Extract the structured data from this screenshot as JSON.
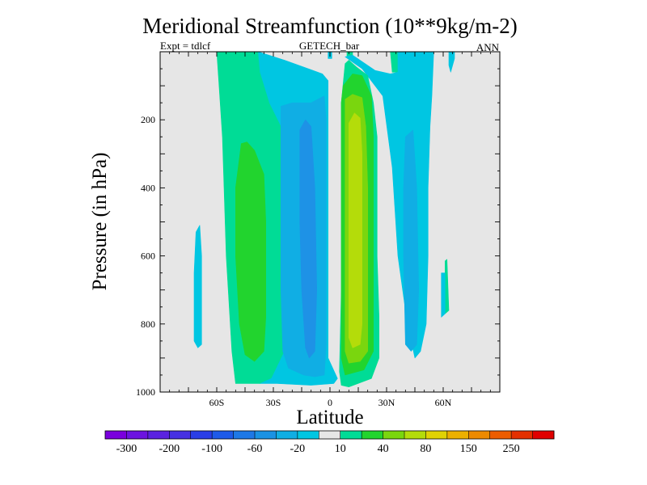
{
  "chart_data": {
    "type": "contour",
    "title": "Meridional Streamfunction (10**9kg/m-2)",
    "subtitle_left": "Expt = tdlcf",
    "subtitle_center": "GETECH_bar",
    "subtitle_right": "ANN",
    "xlabel": "Latitude",
    "ylabel": "Pressure (in hPa)",
    "xlim": [
      -90,
      90
    ],
    "ylim": [
      1000,
      0
    ],
    "x_ticks": [
      {
        "value": -60,
        "label": "60S"
      },
      {
        "value": -30,
        "label": "30S"
      },
      {
        "value": 0,
        "label": "0"
      },
      {
        "value": 30,
        "label": "30N"
      },
      {
        "value": 60,
        "label": "60N"
      }
    ],
    "y_ticks": [
      {
        "value": 200,
        "label": "200"
      },
      {
        "value": 400,
        "label": "400"
      },
      {
        "value": 600,
        "label": "600"
      },
      {
        "value": 800,
        "label": "800"
      },
      {
        "value": 1000,
        "label": "1000"
      }
    ],
    "background_color": "#e6e6e6",
    "colorbar": {
      "colors": [
        "#7a00dd",
        "#6c14e0",
        "#5a22e0",
        "#4630e2",
        "#2a3ee6",
        "#1e5ae8",
        "#1e78e6",
        "#1a92e4",
        "#10aee4",
        "#00c6e2",
        "#e6e6e6",
        "#00dc96",
        "#22d42e",
        "#7ad60e",
        "#b4dc0a",
        "#e0d204",
        "#ecb000",
        "#ec8a00",
        "#ec5c00",
        "#e43000",
        "#e00000"
      ],
      "labels": [
        {
          "text": "-300",
          "boundary": 1
        },
        {
          "text": "-200",
          "boundary": 3
        },
        {
          "text": "-100",
          "boundary": 5
        },
        {
          "text": "-60",
          "boundary": 7
        },
        {
          "text": "-20",
          "boundary": 9
        },
        {
          "text": "10",
          "boundary": 11
        },
        {
          "text": "40",
          "boundary": 13
        },
        {
          "text": "80",
          "boundary": 15
        },
        {
          "text": "150",
          "boundary": 17
        },
        {
          "text": "250",
          "boundary": 19
        }
      ]
    },
    "filled_regions": [
      {
        "level": "10 to 40",
        "color": "#00dc96",
        "polygon": [
          [
            -60,
            0
          ],
          [
            -38,
            0
          ],
          [
            -37,
            60
          ],
          [
            -32,
            150
          ],
          [
            -24,
            240
          ],
          [
            -22,
            400
          ],
          [
            -22,
            700
          ],
          [
            -24,
            880
          ],
          [
            -31,
            960
          ],
          [
            -37,
            975
          ],
          [
            -50,
            975
          ],
          [
            -52,
            880
          ],
          [
            -55,
            600
          ],
          [
            -57,
            250
          ],
          [
            -59,
            80
          ]
        ]
      },
      {
        "level": "10 to 40",
        "color": "#00dc96",
        "polygon": [
          [
            9,
            0
          ],
          [
            12,
            0
          ],
          [
            12,
            10
          ],
          [
            9,
            15
          ]
        ]
      },
      {
        "level": "10 to 40",
        "color": "#00dc96",
        "polygon": [
          [
            32,
            0
          ],
          [
            36,
            0
          ],
          [
            36,
            60
          ],
          [
            33,
            60
          ]
        ]
      },
      {
        "level": "10 to 40",
        "color": "#00dc96",
        "polygon": [
          [
            61,
            615
          ],
          [
            62,
            610
          ],
          [
            63,
            760
          ],
          [
            61,
            770
          ]
        ]
      },
      {
        "level": "40 to 80",
        "color": "#22d42e",
        "polygon": [
          [
            -47,
            270
          ],
          [
            -44,
            265
          ],
          [
            -40,
            290
          ],
          [
            -35,
            360
          ],
          [
            -34,
            500
          ],
          [
            -34,
            780
          ],
          [
            -35,
            880
          ],
          [
            -40,
            910
          ],
          [
            -45,
            890
          ],
          [
            -48,
            800
          ],
          [
            -50,
            600
          ],
          [
            -50,
            400
          ]
        ]
      },
      {
        "level": "-20 to 10",
        "color": "#00c6e2",
        "polygon": [
          [
            -71,
            530
          ],
          [
            -69,
            510
          ],
          [
            -68,
            600
          ],
          [
            -68,
            860
          ],
          [
            -70,
            870
          ],
          [
            -72,
            850
          ],
          [
            -72,
            650
          ]
        ]
      },
      {
        "level": "-20 to 10",
        "color": "#00c6e2",
        "polygon": [
          [
            -38,
            0
          ],
          [
            -24,
            25
          ],
          [
            -4,
            65
          ],
          [
            -1,
            85
          ],
          [
            -1,
            300
          ],
          [
            -1,
            900
          ],
          [
            4,
            960
          ],
          [
            2,
            975
          ],
          [
            -10,
            980
          ],
          [
            -28,
            975
          ],
          [
            -37,
            975
          ],
          [
            -31,
            960
          ],
          [
            -24,
            880
          ],
          [
            -22,
            700
          ],
          [
            -22,
            400
          ],
          [
            -24,
            240
          ],
          [
            -32,
            150
          ],
          [
            -37,
            60
          ]
        ]
      },
      {
        "level": "-20 to 10",
        "color": "#00c6e2",
        "polygon": [
          [
            -1,
            0
          ],
          [
            1,
            0
          ],
          [
            1,
            20
          ],
          [
            -1,
            20
          ]
        ]
      },
      {
        "level": "-20 to 10",
        "color": "#00c6e2",
        "polygon": [
          [
            8,
            15
          ],
          [
            12,
            10
          ],
          [
            24,
            55
          ],
          [
            32,
            65
          ],
          [
            36,
            60
          ],
          [
            36,
            0
          ],
          [
            55,
            0
          ],
          [
            54,
            130
          ],
          [
            53,
            220
          ],
          [
            52,
            400
          ],
          [
            52,
            600
          ],
          [
            51,
            800
          ],
          [
            48,
            880
          ],
          [
            45,
            900
          ],
          [
            41,
            800
          ],
          [
            36,
            600
          ],
          [
            33,
            340
          ],
          [
            28,
            130
          ],
          [
            17,
            50
          ]
        ]
      },
      {
        "level": "-20 to 10",
        "color": "#00c6e2",
        "polygon": [
          [
            63,
            0
          ],
          [
            66,
            0
          ],
          [
            66,
            20
          ],
          [
            64,
            60
          ],
          [
            63,
            40
          ]
        ]
      },
      {
        "level": "-20 to 10",
        "color": "#00c6e2",
        "polygon": [
          [
            59,
            650
          ],
          [
            61,
            650
          ],
          [
            61,
            770
          ],
          [
            59,
            780
          ]
        ]
      },
      {
        "level": "-60 to -20",
        "color": "#10aee4",
        "polygon": [
          [
            -26,
            160
          ],
          [
            -20,
            150
          ],
          [
            -10,
            150
          ],
          [
            -3,
            130
          ],
          [
            -2,
            200
          ],
          [
            -2,
            500
          ],
          [
            -2,
            860
          ],
          [
            -3,
            950
          ],
          [
            -8,
            955
          ],
          [
            -14,
            950
          ],
          [
            -22,
            930
          ],
          [
            -25,
            880
          ],
          [
            -26,
            700
          ],
          [
            -26,
            400
          ]
        ]
      },
      {
        "level": "-60 to -20",
        "color": "#10aee4",
        "polygon": [
          [
            40,
            250
          ],
          [
            44,
            230
          ],
          [
            46,
            400
          ],
          [
            47,
            700
          ],
          [
            46,
            860
          ],
          [
            43,
            880
          ],
          [
            40,
            860
          ],
          [
            39,
            600
          ],
          [
            39,
            400
          ]
        ]
      },
      {
        "level": "-100 to -60",
        "color": "#1e92e6",
        "polygon": [
          [
            -16,
            230
          ],
          [
            -13,
            200
          ],
          [
            -10,
            220
          ],
          [
            -8,
            400
          ],
          [
            -7,
            700
          ],
          [
            -8,
            880
          ],
          [
            -11,
            900
          ],
          [
            -13,
            870
          ],
          [
            -15,
            700
          ],
          [
            -16,
            500
          ],
          [
            -16,
            350
          ]
        ]
      },
      {
        "level": "10 to 40",
        "color": "#00dc96",
        "polygon": [
          [
            8,
            35
          ],
          [
            10,
            25
          ],
          [
            14,
            45
          ],
          [
            20,
            70
          ],
          [
            23,
            150
          ],
          [
            25,
            250
          ],
          [
            25,
            600
          ],
          [
            26,
            780
          ],
          [
            26,
            900
          ],
          [
            22,
            960
          ],
          [
            10,
            985
          ],
          [
            6,
            980
          ],
          [
            5,
            940
          ],
          [
            6,
            700
          ],
          [
            6,
            400
          ],
          [
            6,
            150
          ]
        ]
      },
      {
        "level": "40 to 80",
        "color": "#22d42e",
        "polygon": [
          [
            7,
            100
          ],
          [
            12,
            65
          ],
          [
            17,
            70
          ],
          [
            22,
            130
          ],
          [
            23,
            250
          ],
          [
            23,
            600
          ],
          [
            23,
            800
          ],
          [
            23,
            880
          ],
          [
            18,
            935
          ],
          [
            8,
            950
          ],
          [
            6,
            900
          ],
          [
            6,
            600
          ],
          [
            6,
            300
          ],
          [
            6,
            150
          ]
        ]
      },
      {
        "level": "80 to 150",
        "color": "#7ad60e",
        "polygon": [
          [
            8,
            140
          ],
          [
            12,
            125
          ],
          [
            17,
            135
          ],
          [
            19,
            220
          ],
          [
            20,
            400
          ],
          [
            20,
            700
          ],
          [
            20,
            880
          ],
          [
            16,
            910
          ],
          [
            10,
            915
          ],
          [
            8,
            880
          ],
          [
            8,
            600
          ],
          [
            8,
            300
          ],
          [
            8,
            180
          ]
        ]
      },
      {
        "level": "150 to 250",
        "color": "#b4dc0a",
        "polygon": [
          [
            10,
            210
          ],
          [
            13,
            180
          ],
          [
            16,
            195
          ],
          [
            17,
            300
          ],
          [
            17,
            600
          ],
          [
            17,
            800
          ],
          [
            16,
            860
          ],
          [
            12,
            870
          ],
          [
            10,
            840
          ],
          [
            10,
            600
          ],
          [
            10,
            300
          ]
        ]
      }
    ]
  }
}
